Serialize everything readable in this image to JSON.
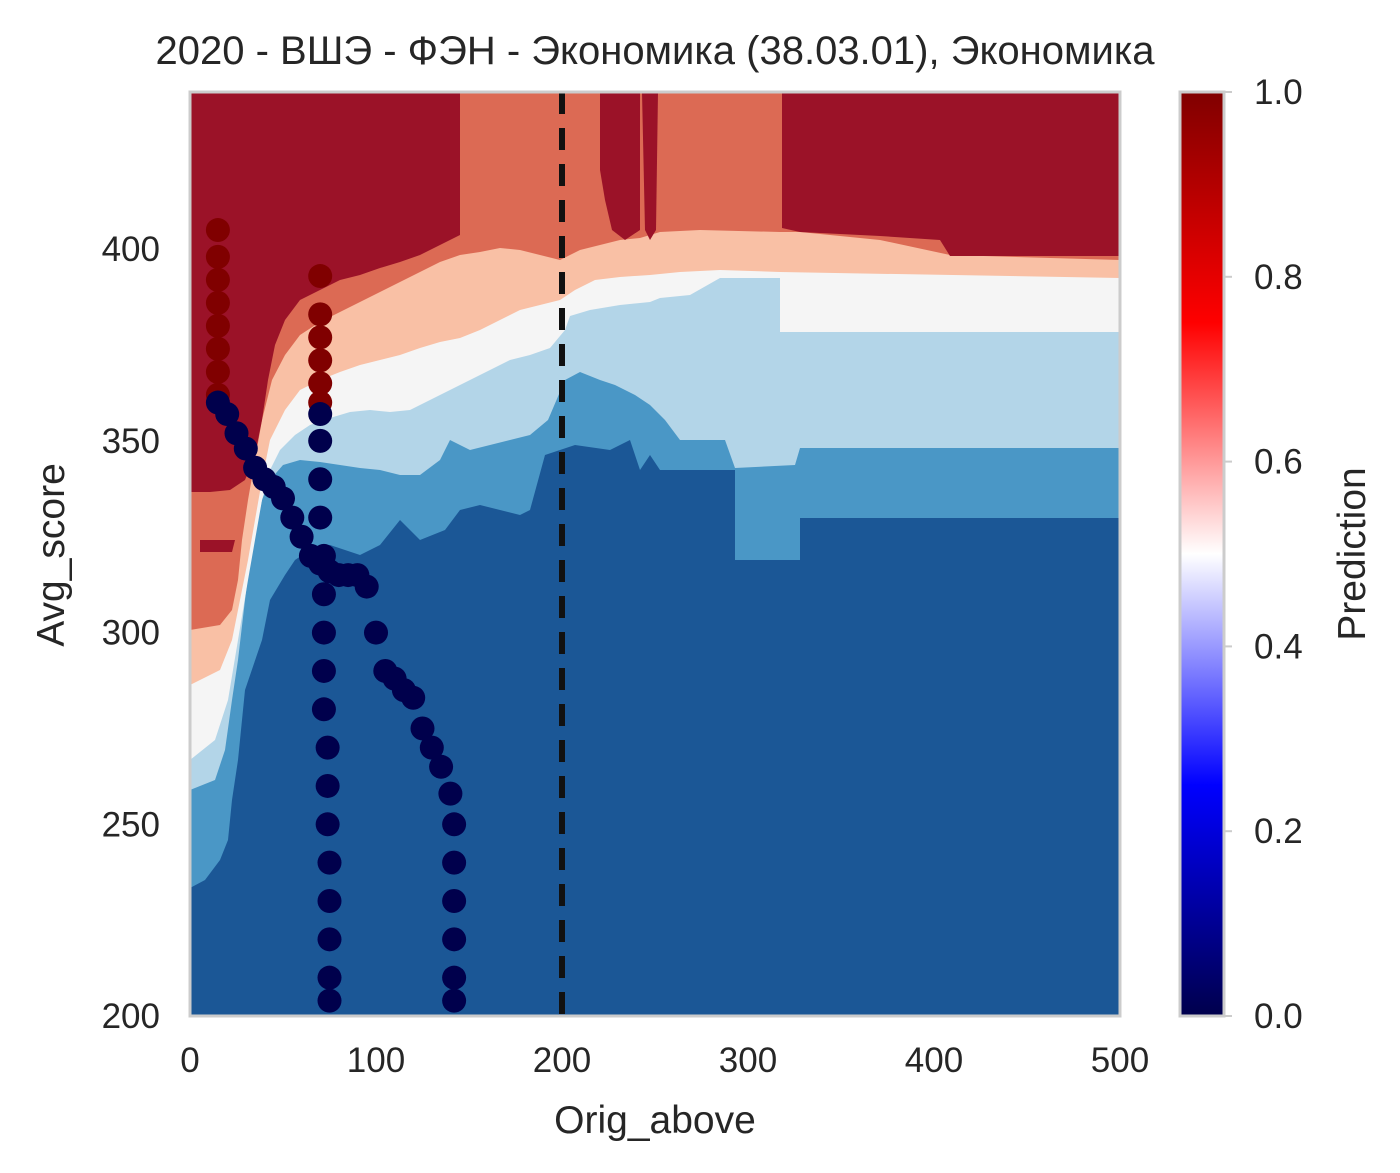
{
  "chart_data": {
    "type": "heatmap",
    "title": "2020 - ВШЭ - ФЭН - Экономика (38.03.01), Экономика",
    "xlabel": "Orig_above",
    "ylabel": "Avg_score",
    "xlim": [
      0,
      500
    ],
    "ylim": [
      200,
      441
    ],
    "x_ticks": [
      "0",
      "100",
      "200",
      "300",
      "400",
      "500"
    ],
    "y_ticks": [
      "200",
      "250",
      "300",
      "350",
      "400"
    ],
    "grid": false,
    "colorbar": {
      "label": "Prediction",
      "range": [
        0,
        1
      ],
      "ticks": [
        "0.0",
        "0.2",
        "0.4",
        "0.6",
        "0.8",
        "1.0"
      ],
      "colormap": "seismic"
    },
    "vertical_line": {
      "x": 200,
      "style": "dashed",
      "color": "#111111"
    },
    "contour_levels": [
      {
        "level": "0.0–0.1",
        "color": "#1b5796"
      },
      {
        "level": "0.1–0.2",
        "color": "#4a97c6"
      },
      {
        "level": "0.2–0.3",
        "color": "#b3d5e8"
      },
      {
        "level": "0.4–0.5",
        "color": "#f5f5f5"
      },
      {
        "level": "0.5–0.6",
        "color": "#f9c0a5"
      },
      {
        "level": "0.6–0.7",
        "color": "#dc6a54"
      },
      {
        "level": "0.8–1.0",
        "color": "#9b1228"
      }
    ],
    "regions": [
      {
        "name": "top-band",
        "prediction": 0.9,
        "x_range": [
          0,
          500
        ],
        "y_range": [
          395,
          441
        ]
      },
      {
        "name": "upper-right",
        "prediction": 0.5,
        "x_range": [
          320,
          500
        ],
        "y_range": [
          380,
          392
        ]
      },
      {
        "name": "right-mid",
        "prediction": 0.25,
        "x_range": [
          320,
          500
        ],
        "y_range": [
          348,
          380
        ]
      },
      {
        "name": "lower-body",
        "prediction": 0.05,
        "x_range": [
          0,
          500
        ],
        "y_range": [
          200,
          330
        ]
      }
    ],
    "series": [
      {
        "name": "",
        "color_value": 1.0,
        "points": [
          [
            15,
            405
          ],
          [
            15,
            398
          ],
          [
            15,
            392
          ],
          [
            15,
            386
          ],
          [
            15,
            380
          ],
          [
            15,
            374
          ],
          [
            15,
            368
          ],
          [
            15,
            362
          ],
          [
            70,
            393
          ],
          [
            70,
            383
          ],
          [
            70,
            377
          ],
          [
            70,
            371
          ],
          [
            70,
            365
          ],
          [
            70,
            360
          ]
        ]
      },
      {
        "name": "",
        "color_value": 0.0,
        "points": [
          [
            15,
            360
          ],
          [
            20,
            357
          ],
          [
            25,
            352
          ],
          [
            30,
            348
          ],
          [
            35,
            343
          ],
          [
            40,
            340
          ],
          [
            45,
            338
          ],
          [
            50,
            335
          ],
          [
            55,
            330
          ],
          [
            60,
            325
          ],
          [
            65,
            320
          ],
          [
            70,
            318
          ],
          [
            75,
            316
          ],
          [
            80,
            315
          ],
          [
            85,
            315
          ],
          [
            90,
            315
          ],
          [
            95,
            312
          ],
          [
            100,
            300
          ],
          [
            105,
            290
          ],
          [
            110,
            288
          ],
          [
            115,
            285
          ],
          [
            120,
            283
          ],
          [
            125,
            275
          ],
          [
            130,
            270
          ],
          [
            135,
            265
          ],
          [
            140,
            258
          ],
          [
            142,
            250
          ],
          [
            142,
            240
          ],
          [
            142,
            230
          ],
          [
            142,
            220
          ],
          [
            142,
            210
          ],
          [
            142,
            204
          ],
          [
            70,
            357
          ],
          [
            70,
            350
          ],
          [
            70,
            340
          ],
          [
            70,
            330
          ],
          [
            72,
            320
          ],
          [
            72,
            310
          ],
          [
            72,
            300
          ],
          [
            72,
            290
          ],
          [
            72,
            280
          ],
          [
            74,
            270
          ],
          [
            74,
            260
          ],
          [
            74,
            250
          ],
          [
            75,
            240
          ],
          [
            75,
            230
          ],
          [
            75,
            220
          ],
          [
            75,
            210
          ],
          [
            75,
            204
          ]
        ]
      }
    ]
  }
}
